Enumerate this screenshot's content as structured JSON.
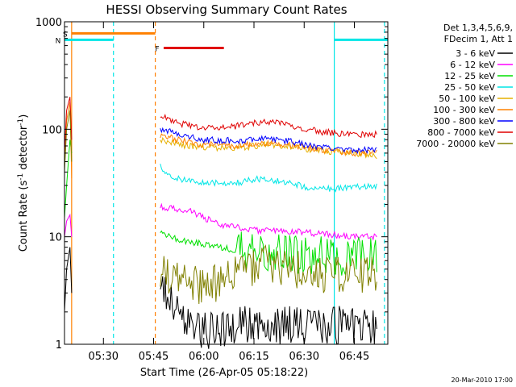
{
  "chart_data": {
    "type": "line",
    "title": "HESSI Observing Summary Count Rates",
    "xlabel": "Start Time (26-Apr-05 05:18:22)",
    "ylabel": "Count Rate (s⁻¹ detector⁻¹)",
    "ylabel_main": "Count Rate (s",
    "ylabel_sup1": "-1",
    "ylabel_mid": " detector",
    "ylabel_sup2": "-1",
    "ylabel_end": ")",
    "footer": "20-Mar-2010 17:00",
    "yscale": "log",
    "ylim": [
      1,
      1000
    ],
    "xlim": [
      "05:18:22",
      "06:55:00"
    ],
    "xticks": [
      "05:30",
      "05:45",
      "06:00",
      "06:15",
      "06:30",
      "06:45"
    ],
    "yticks": [
      "1",
      "10",
      "100",
      "1000"
    ],
    "legend": {
      "position": "top-right",
      "header1": "Det 1,3,4,5,6,9,",
      "header2": "FDecim 1, Att 1",
      "entries": [
        {
          "label": "3 - 6 keV",
          "color": "#000000"
        },
        {
          "label": "6 - 12 keV",
          "color": "#ff00ff"
        },
        {
          "label": "12 - 25 keV",
          "color": "#00e000"
        },
        {
          "label": "25 - 50 keV",
          "color": "#00e6e6"
        },
        {
          "label": "50 - 100 keV",
          "color": "#e6b000"
        },
        {
          "label": "100 - 300 keV",
          "color": "#ff8000"
        },
        {
          "label": "300 - 800 keV",
          "color": "#0000ff"
        },
        {
          "label": "800 - 7000 keV",
          "color": "#e00000"
        },
        {
          "label": "7000 - 20000 keV",
          "color": "#808000"
        }
      ]
    },
    "series": [
      {
        "name": "3 - 6 keV",
        "color": "#000000",
        "x": [
          "05:47",
          "05:50",
          "05:55",
          "06:00",
          "06:10",
          "06:20",
          "06:30",
          "06:40",
          "06:52"
        ],
        "values": [
          3.5,
          2.5,
          1.5,
          1.3,
          1.5,
          1.5,
          1.5,
          1.5,
          1.5
        ]
      },
      {
        "name": "6 - 12 keV",
        "color": "#ff00ff",
        "x": [
          "05:47",
          "05:52",
          "05:57",
          "06:00",
          "06:05",
          "06:15",
          "06:30",
          "06:45",
          "06:52"
        ],
        "values": [
          19,
          18,
          17,
          15,
          13,
          11.5,
          11,
          10,
          10
        ]
      },
      {
        "name": "12 - 25 keV",
        "color": "#00e000",
        "x": [
          "05:47",
          "05:52",
          "06:00",
          "06:10",
          "06:20",
          "06:30",
          "06:45",
          "06:52"
        ],
        "values": [
          11,
          9.5,
          8.5,
          7.5,
          7,
          6.8,
          6.5,
          6.5
        ]
      },
      {
        "name": "25 - 50 keV",
        "color": "#00e6e6",
        "x": [
          "05:47",
          "05:50",
          "05:55",
          "06:00",
          "06:10",
          "06:18",
          "06:25",
          "06:32",
          "06:40",
          "06:52"
        ],
        "values": [
          45,
          36,
          33,
          32,
          32,
          35,
          32,
          28,
          28,
          30
        ]
      },
      {
        "name": "50 - 100 keV",
        "color": "#e6b000",
        "x": [
          "05:47",
          "05:55",
          "06:00",
          "06:10",
          "06:18",
          "06:25",
          "06:32",
          "06:45",
          "06:52"
        ],
        "values": [
          80,
          70,
          68,
          66,
          72,
          70,
          64,
          60,
          57
        ]
      },
      {
        "name": "100 - 300 keV",
        "color": "#ff8000",
        "x": [
          "05:47",
          "05:55",
          "06:00",
          "06:10",
          "06:18",
          "06:25",
          "06:32",
          "06:45",
          "06:52"
        ],
        "values": [
          88,
          76,
          72,
          70,
          74,
          72,
          66,
          60,
          62
        ]
      },
      {
        "name": "300 - 800 keV",
        "color": "#0000ff",
        "x": [
          "05:47",
          "05:55",
          "06:00",
          "06:10",
          "06:18",
          "06:25",
          "06:32",
          "06:45",
          "06:52"
        ],
        "values": [
          100,
          86,
          80,
          78,
          82,
          78,
          70,
          64,
          64
        ]
      },
      {
        "name": "800 - 7000 keV",
        "color": "#e00000",
        "x": [
          "05:47",
          "05:52",
          "06:00",
          "06:08",
          "06:15",
          "06:20",
          "06:25",
          "06:35",
          "06:45",
          "06:52"
        ],
        "values": [
          135,
          115,
          102,
          105,
          115,
          118,
          110,
          95,
          88,
          90
        ]
      },
      {
        "name": "7000 - 20000 keV",
        "color": "#808000",
        "x": [
          "05:47",
          "05:52",
          "06:00",
          "06:05",
          "06:12",
          "06:18",
          "06:25",
          "06:35",
          "06:45",
          "06:52"
        ],
        "values": [
          5,
          4,
          3.5,
          3.8,
          5,
          5.5,
          5.2,
          4.5,
          4.5,
          4.5
        ]
      }
    ],
    "early_segment": {
      "x": [
        "05:18:22",
        "05:19",
        "05:20",
        "05:20:30"
      ],
      "series_values": {
        "3 - 6 keV": [
          2,
          5,
          8,
          3
        ],
        "6 - 12 keV": [
          10,
          14,
          16,
          10
        ],
        "12 - 25 keV": [
          15,
          30,
          80,
          60
        ],
        "100 - 300 keV": [
          50,
          120,
          180,
          35
        ],
        "800 - 7000 keV": [
          60,
          150,
          200,
          80
        ],
        "7000 - 20000 keV": [
          40,
          100,
          150,
          50
        ]
      }
    },
    "flag_bars": [
      {
        "label": "S",
        "color": "#ff8000",
        "x_start": "05:20:30",
        "x_end": "05:45:30",
        "value": 780
      },
      {
        "label": "N",
        "color": "#00e6e6",
        "x_start": "05:18:22",
        "x_end": "05:33",
        "value": 680
      },
      {
        "label": "",
        "color": "#00e6e6",
        "x_start": "06:39",
        "x_end": "06:55",
        "value": 680
      },
      {
        "label": "F",
        "color": "#e00000",
        "x_start": "05:48",
        "x_end": "06:06",
        "value": 570
      }
    ],
    "markers": [
      {
        "x": "05:20:30",
        "color": "#ff8000",
        "style": "solid"
      },
      {
        "x": "05:33",
        "color": "#00e6e6",
        "style": "dashed"
      },
      {
        "x": "05:45:30",
        "color": "#ff8000",
        "style": "dashed"
      },
      {
        "x": "06:39",
        "color": "#00e6e6",
        "style": "solid"
      },
      {
        "x": "06:54",
        "color": "#00e6e6",
        "style": "dashed"
      }
    ]
  }
}
